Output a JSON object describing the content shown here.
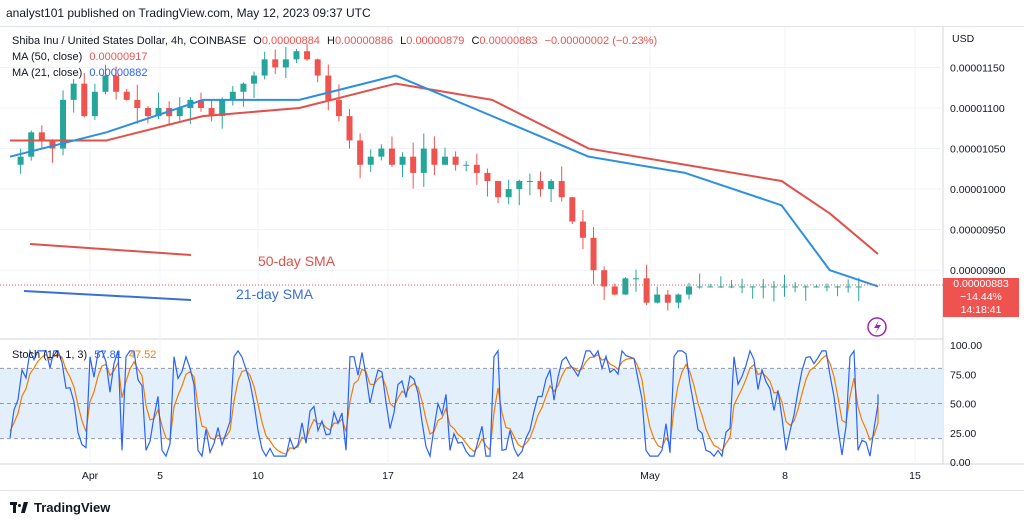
{
  "header": {
    "published": "analyst101 published on TradingView.com, May 12, 2023 09:37 UTC"
  },
  "legend": {
    "symbol": "Shiba Inu / United States Dollar, 4h, COINBASE",
    "o_label": "O",
    "o_value": "0.00000884",
    "h_label": "H",
    "h_value": "0.00000886",
    "l_label": "L",
    "l_value": "0.00000879",
    "c_label": "C",
    "c_value": "0.00000883",
    "change": "−0.00000002 (−0.23%)",
    "ma50_label": "MA (50, close)",
    "ma50_value": "0.00000917",
    "ma21_label": "MA (21, close)",
    "ma21_value": "0.00000882",
    "stoch_label": "Stoch (14, 1, 3)",
    "stoch_k": "57.81",
    "stoch_d": "47.52"
  },
  "price_axis": {
    "currency": "USD",
    "labels": [
      "0.00001150",
      "0.00001100",
      "0.00001050",
      "0.00001000",
      "0.00000950",
      "0.00000900"
    ],
    "last_price": "0.00000883",
    "last_change": "−14.44%",
    "countdown": "14:18:41"
  },
  "stoch_axis": {
    "labels": [
      "100.00",
      "75.00",
      "50.00",
      "25.00",
      "0.00"
    ]
  },
  "time_axis": {
    "labels": [
      "Apr",
      "5",
      "10",
      "17",
      "24",
      "May",
      "8",
      "15"
    ]
  },
  "annotations": {
    "sma50": "50-day SMA",
    "sma21": "21-day SMA"
  },
  "footer": {
    "brand": "TradingView"
  },
  "colors": {
    "up": "#26a69a",
    "down": "#ef5350",
    "ma50": "#e0514b",
    "ma21": "#2d8fe0",
    "stoch_k": "#2962ff",
    "stoch_d": "#f57c00",
    "stoch_band": "#e3f0fc"
  },
  "chart_data": [
    {
      "type": "line",
      "title": "Shiba Inu / United States Dollar, 4h, COINBASE",
      "x_labels": [
        "Apr",
        "5",
        "10",
        "17",
        "24",
        "May",
        "8",
        "15"
      ],
      "ylim": [
        8.3e-06,
        1.19e-05
      ],
      "y_ticks": [
        1.15e-05,
        1.1e-05,
        1.05e-05,
        1e-05,
        9.5e-06,
        9e-06
      ],
      "series": [
        {
          "name": "Price",
          "x": [
            0,
            3,
            6,
            9,
            12,
            15,
            18,
            21,
            24,
            27,
            30,
            33,
            36,
            39,
            42,
            45,
            48,
            51,
            54,
            57,
            60,
            63,
            66,
            69,
            72,
            75,
            78,
            81,
            84,
            87,
            90,
            93,
            96,
            99,
            102,
            105,
            108,
            111,
            114,
            117,
            120,
            123,
            126,
            129,
            132,
            135,
            138,
            141,
            144,
            147,
            150,
            153,
            156,
            159,
            162,
            165,
            168,
            171,
            174,
            177,
            180,
            183,
            186,
            189,
            192,
            195,
            198,
            201,
            204,
            207,
            210,
            213,
            216,
            219,
            222,
            225,
            228,
            231,
            234,
            237,
            240,
            243,
            246
          ],
          "values": [
            1.03e-05,
            1.04e-05,
            1.07e-05,
            1.06e-05,
            1.05e-05,
            1.11e-05,
            1.13e-05,
            1.09e-05,
            1.12e-05,
            1.14e-05,
            1.12e-05,
            1.11e-05,
            1.1e-05,
            1.09e-05,
            1.1e-05,
            1.09e-05,
            1.1e-05,
            1.11e-05,
            1.1e-05,
            1.09e-05,
            1.11e-05,
            1.12e-05,
            1.13e-05,
            1.14e-05,
            1.16e-05,
            1.15e-05,
            1.16e-05,
            1.17e-05,
            1.16e-05,
            1.14e-05,
            1.11e-05,
            1.09e-05,
            1.06e-05,
            1.03e-05,
            1.04e-05,
            1.05e-05,
            1.03e-05,
            1.04e-05,
            1.02e-05,
            1.05e-05,
            1.03e-05,
            1.04e-05,
            1.03e-05,
            1.03e-05,
            1.02e-05,
            1.01e-05,
            9.9e-06,
            1e-05,
            1.01e-05,
            1.01e-05,
            1e-05,
            1.01e-05,
            9.9e-06,
            9.6e-06,
            9.4e-06,
            9e-06,
            8.8e-06,
            8.7e-06,
            8.9e-06,
            8.9e-06,
            8.6e-06,
            8.7e-06,
            8.6e-06,
            8.7e-06,
            8.8e-06,
            8.8e-06,
            8.8e-06,
            8.8e-06,
            8.8e-06,
            8.8e-06,
            8.8e-06,
            8.8e-06,
            8.8e-06,
            8.8e-06,
            8.8e-06,
            8.8e-06,
            8.8e-06,
            8.8e-06,
            8.8e-06,
            8.8e-06,
            8.8e-06,
            8.8e-06,
            8.8e-06
          ]
        },
        {
          "name": "MA (50, close)",
          "x": [
            0,
            20,
            40,
            60,
            80,
            100,
            120,
            140,
            160,
            170,
            180
          ],
          "values": [
            1.06e-05,
            1.06e-05,
            1.09e-05,
            1.1e-05,
            1.13e-05,
            1.11e-05,
            1.05e-05,
            1.03e-05,
            1.01e-05,
            9.7e-06,
            9.2e-06
          ]
        },
        {
          "name": "MA (21, close)",
          "x": [
            0,
            20,
            40,
            60,
            80,
            100,
            120,
            140,
            160,
            170,
            180
          ],
          "values": [
            1.04e-05,
            1.07e-05,
            1.11e-05,
            1.11e-05,
            1.14e-05,
            1.09e-05,
            1.04e-05,
            1.02e-05,
            9.8e-06,
            9e-06,
            8.8e-06
          ]
        }
      ]
    },
    {
      "type": "line",
      "title": "Stoch (14, 1, 3)",
      "ylim": [
        0,
        100
      ],
      "y_ticks": [
        100,
        75,
        50,
        25,
        0
      ],
      "band": [
        20,
        80
      ],
      "series": [
        {
          "name": "%K",
          "last": 57.81
        },
        {
          "name": "%D",
          "last": 47.52
        }
      ]
    }
  ]
}
